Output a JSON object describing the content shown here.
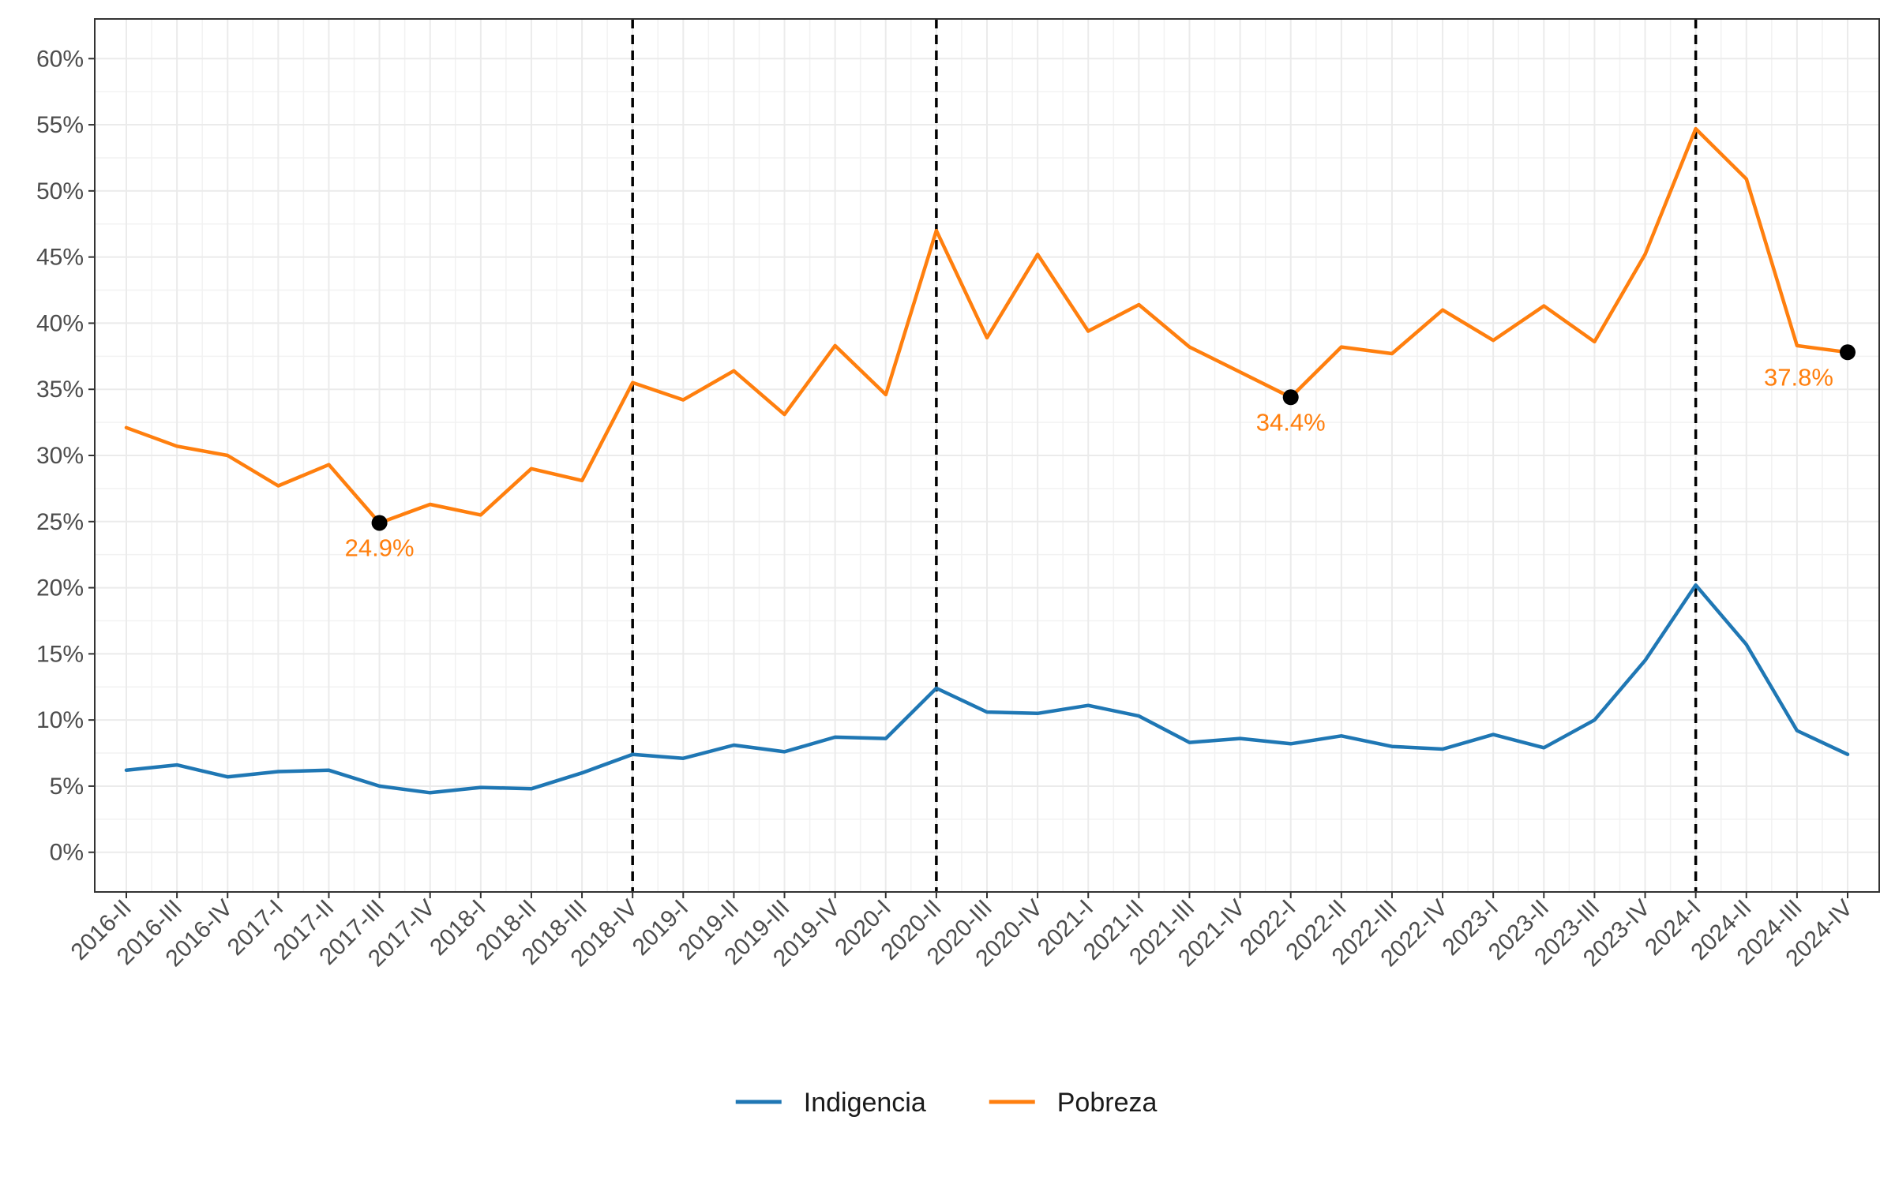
{
  "chart_data": {
    "type": "line",
    "title": "",
    "xlabel": "",
    "ylabel": "",
    "categories": [
      "2016-II",
      "2016-III",
      "2016-IV",
      "2017-I",
      "2017-II",
      "2017-III",
      "2017-IV",
      "2018-I",
      "2018-II",
      "2018-III",
      "2018-IV",
      "2019-I",
      "2019-II",
      "2019-III",
      "2019-IV",
      "2020-I",
      "2020-II",
      "2020-III",
      "2020-IV",
      "2021-I",
      "2021-II",
      "2021-III",
      "2021-IV",
      "2022-I",
      "2022-II",
      "2022-III",
      "2022-IV",
      "2023-I",
      "2023-II",
      "2023-III",
      "2023-IV",
      "2024-I",
      "2024-II",
      "2024-III",
      "2024-IV"
    ],
    "ylim": [
      0,
      60
    ],
    "yticks": [
      0,
      5,
      10,
      15,
      20,
      25,
      30,
      35,
      40,
      45,
      50,
      55,
      60
    ],
    "ytick_suffix": "%",
    "grid": true,
    "legend_position": "bottom",
    "vlines": [
      "2018-IV",
      "2020-II",
      "2024-I"
    ],
    "series": [
      {
        "name": "Indigencia",
        "color": "#1f77b4",
        "values": [
          6.2,
          6.6,
          5.7,
          6.1,
          6.2,
          5.0,
          4.5,
          4.9,
          4.8,
          6.0,
          7.4,
          7.1,
          8.1,
          7.6,
          8.7,
          8.6,
          12.4,
          10.6,
          10.5,
          11.1,
          10.3,
          8.3,
          8.6,
          8.2,
          8.8,
          8.0,
          7.8,
          8.9,
          7.9,
          10.0,
          14.5,
          20.2,
          15.7,
          9.2,
          7.4
        ]
      },
      {
        "name": "Pobreza",
        "color": "#ff7f0e",
        "values": [
          32.1,
          30.7,
          30.0,
          27.7,
          29.3,
          24.9,
          26.3,
          25.5,
          29.0,
          28.1,
          35.5,
          34.2,
          36.4,
          33.1,
          38.3,
          34.6,
          47.0,
          38.9,
          45.2,
          39.4,
          41.4,
          38.2,
          36.3,
          34.4,
          38.2,
          37.7,
          41.0,
          38.7,
          41.3,
          38.6,
          45.2,
          54.7,
          50.9,
          38.3,
          37.8
        ]
      }
    ],
    "annotations": [
      {
        "x": "2017-III",
        "y": 24.9,
        "label": "24.9%"
      },
      {
        "x": "2022-I",
        "y": 34.4,
        "label": "34.4%"
      },
      {
        "x": "2024-IV",
        "y": 37.8,
        "label": "37.8%"
      }
    ],
    "annotation_color": "#ff7f0e",
    "point_color": "#000000"
  }
}
